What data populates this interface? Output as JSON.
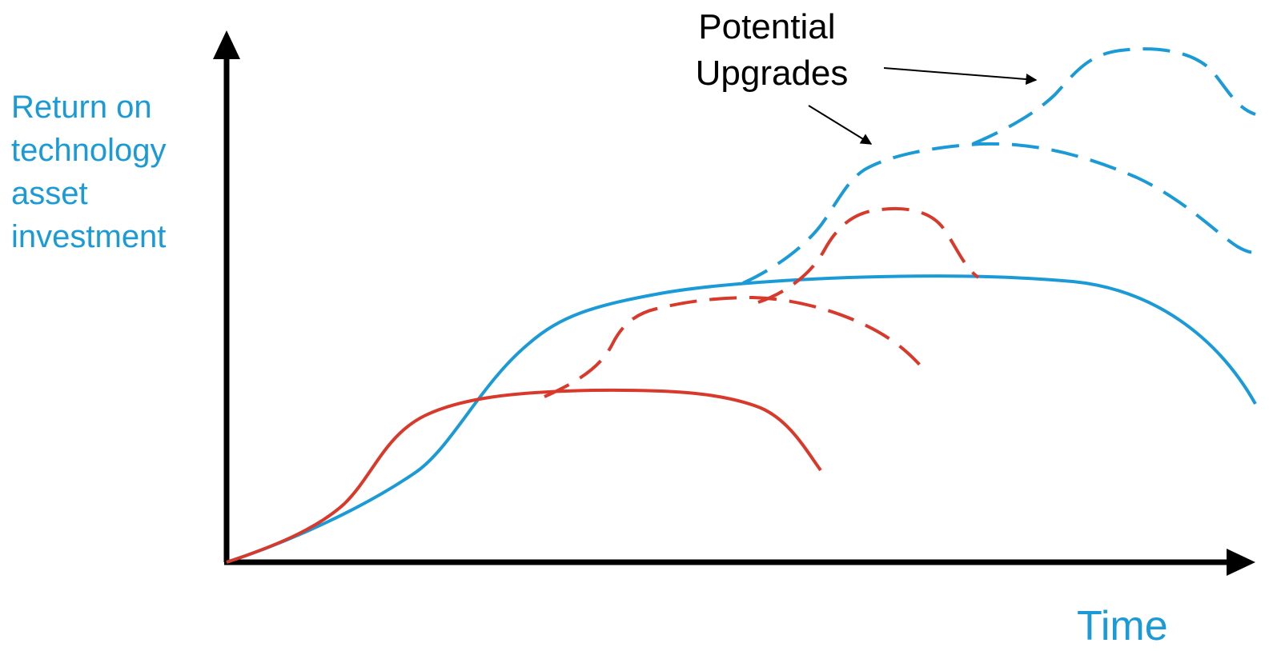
{
  "y_axis_label": [
    "Return on",
    "technology",
    "asset",
    "investment"
  ],
  "x_axis_label": "Time",
  "annotation": [
    "Potential",
    "Upgrades"
  ],
  "colors": {
    "axis": "#000000",
    "label": "#1a9ad6",
    "blue_curve": "#1a9ad6",
    "red_curve": "#d9392b",
    "annotation_text": "#000000"
  },
  "curves": [
    {
      "id": "red-solid",
      "color": "red",
      "style": "solid"
    },
    {
      "id": "red-dashed-upgrade-1",
      "color": "red",
      "style": "dashed"
    },
    {
      "id": "red-dashed-upgrade-2",
      "color": "red",
      "style": "dashed"
    },
    {
      "id": "blue-solid",
      "color": "blue",
      "style": "solid"
    },
    {
      "id": "blue-dashed-upgrade-1",
      "color": "blue",
      "style": "dashed"
    },
    {
      "id": "blue-dashed-upgrade-2",
      "color": "blue",
      "style": "dashed"
    }
  ]
}
